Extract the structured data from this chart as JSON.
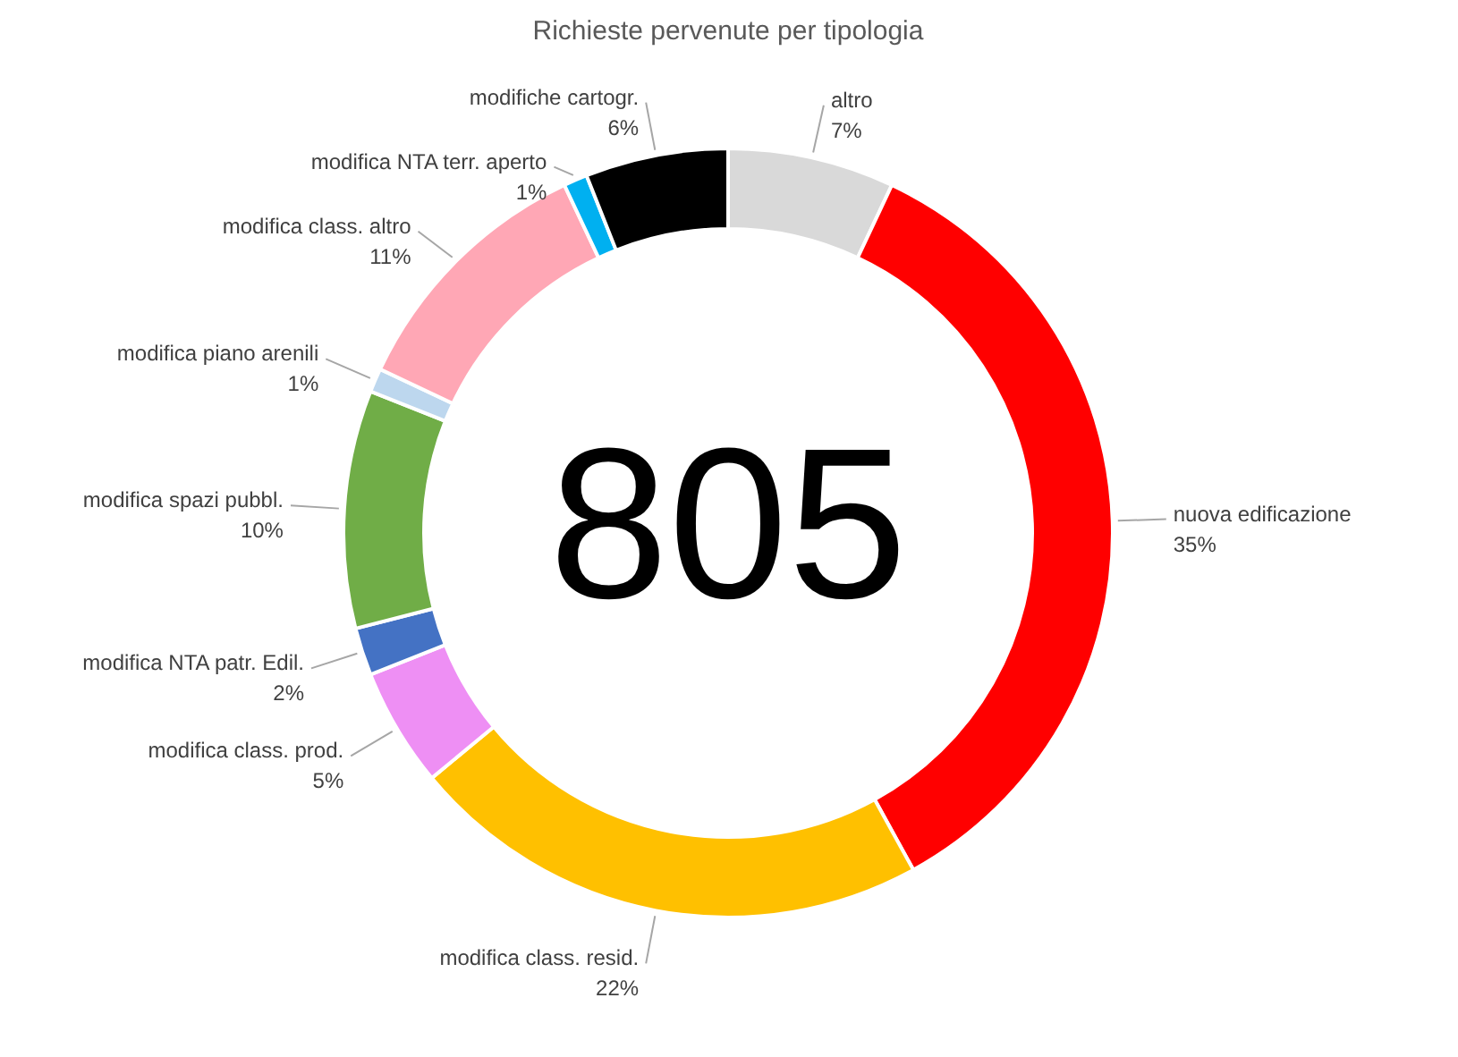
{
  "chart_data": {
    "type": "donut",
    "title": "Richieste pervenute per tipologia",
    "categories": [
      "altro",
      "nuova edificazione",
      "modifica class. resid.",
      "modifica class. prod.",
      "modifica NTA patr. Edil.",
      "modifica spazi pubbl.",
      "modifica piano arenili",
      "modifica class. altro",
      "modifica NTA terr. aperto",
      "modifiche cartogr."
    ],
    "values": [
      7,
      35,
      22,
      5,
      2,
      10,
      1,
      11,
      1,
      6
    ],
    "value_labels": [
      "7%",
      "35%",
      "22%",
      "5%",
      "2%",
      "10%",
      "1%",
      "11%",
      "1%",
      "6%"
    ],
    "colors": [
      "#d9d9d9",
      "#ff0000",
      "#ffc000",
      "#ee8ff4",
      "#4472c4",
      "#70ad47",
      "#bdd7ee",
      "#ffa7b5",
      "#00b0f0",
      "#000000"
    ],
    "annotations": [
      "805"
    ]
  }
}
